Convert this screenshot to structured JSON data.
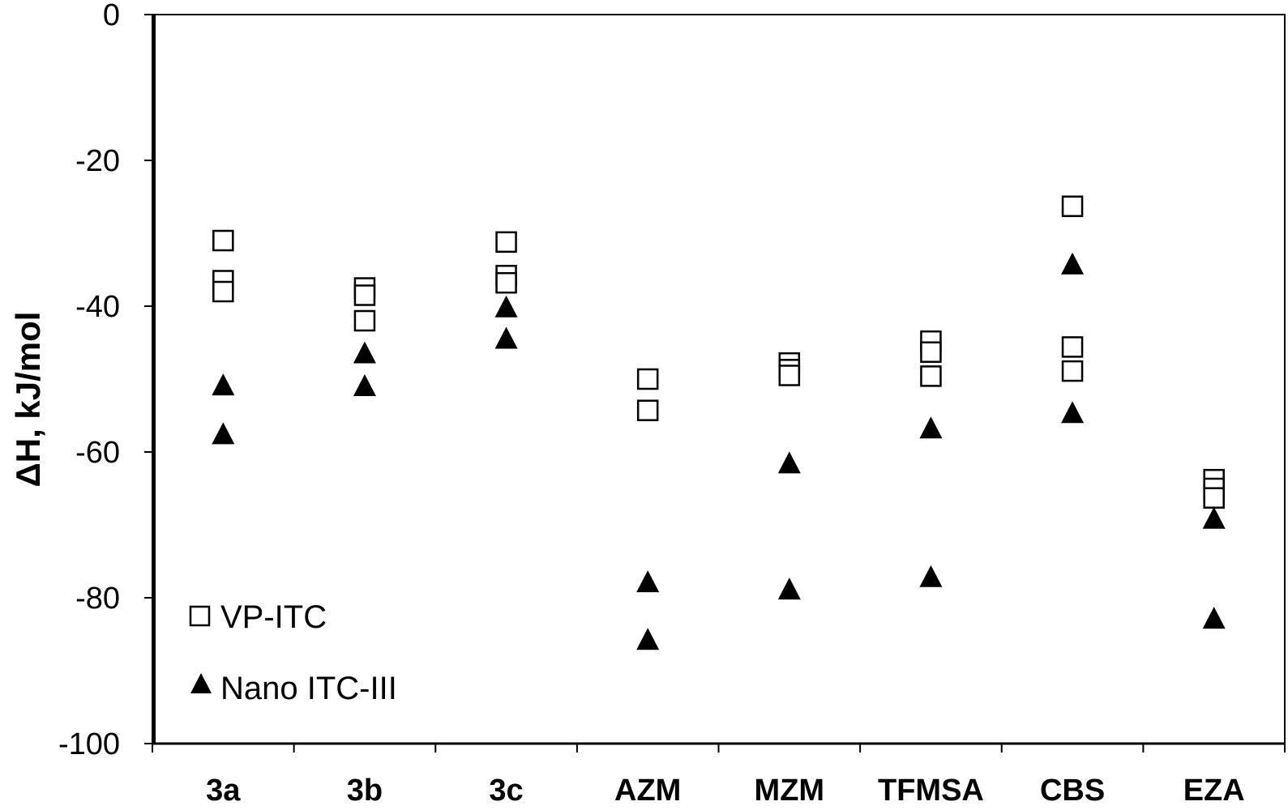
{
  "chart_data": {
    "type": "scatter",
    "title": "",
    "xlabel": "",
    "ylabel": "ΔH, kJ/mol",
    "ylim": [
      -100,
      0
    ],
    "yticks": [
      0,
      -20,
      -40,
      -60,
      -80,
      -100
    ],
    "grid": false,
    "legend_position": "bottom-left",
    "categories": [
      "3a",
      "3b",
      "3c",
      "AZM",
      "MZM",
      "TFMSA",
      "CBS",
      "EZA"
    ],
    "series": [
      {
        "name": "VP-ITC",
        "marker": "open-square",
        "points": [
          {
            "category": "3a",
            "y": -31.0
          },
          {
            "category": "3a",
            "y": -36.5
          },
          {
            "category": "3a",
            "y": -38.0
          },
          {
            "category": "3b",
            "y": -37.5
          },
          {
            "category": "3b",
            "y": -38.5
          },
          {
            "category": "3b",
            "y": -42.0
          },
          {
            "category": "3c",
            "y": -31.2
          },
          {
            "category": "3c",
            "y": -35.8
          },
          {
            "category": "3c",
            "y": -36.8
          },
          {
            "category": "AZM",
            "y": -50.0
          },
          {
            "category": "AZM",
            "y": -54.3
          },
          {
            "category": "MZM",
            "y": -47.8
          },
          {
            "category": "MZM",
            "y": -48.7
          },
          {
            "category": "MZM",
            "y": -49.5
          },
          {
            "category": "TFMSA",
            "y": -44.8
          },
          {
            "category": "TFMSA",
            "y": -46.3
          },
          {
            "category": "TFMSA",
            "y": -49.6
          },
          {
            "category": "CBS",
            "y": -26.3
          },
          {
            "category": "CBS",
            "y": -45.6
          },
          {
            "category": "CBS",
            "y": -48.9
          },
          {
            "category": "EZA",
            "y": -63.8
          },
          {
            "category": "EZA",
            "y": -65.0
          },
          {
            "category": "EZA",
            "y": -66.3
          }
        ]
      },
      {
        "name": "Nano ITC-III",
        "marker": "filled-triangle",
        "points": [
          {
            "category": "3a",
            "y": -50.9
          },
          {
            "category": "3a",
            "y": -57.6
          },
          {
            "category": "3b",
            "y": -46.5
          },
          {
            "category": "3b",
            "y": -51.0
          },
          {
            "category": "3c",
            "y": -40.2
          },
          {
            "category": "3c",
            "y": -44.5
          },
          {
            "category": "AZM",
            "y": -77.9
          },
          {
            "category": "AZM",
            "y": -85.8
          },
          {
            "category": "MZM",
            "y": -61.6
          },
          {
            "category": "MZM",
            "y": -78.9
          },
          {
            "category": "TFMSA",
            "y": -56.8
          },
          {
            "category": "TFMSA",
            "y": -77.2
          },
          {
            "category": "CBS",
            "y": -34.3
          },
          {
            "category": "CBS",
            "y": -54.7
          },
          {
            "category": "EZA",
            "y": -69.2
          },
          {
            "category": "EZA",
            "y": -82.9
          }
        ]
      }
    ]
  }
}
